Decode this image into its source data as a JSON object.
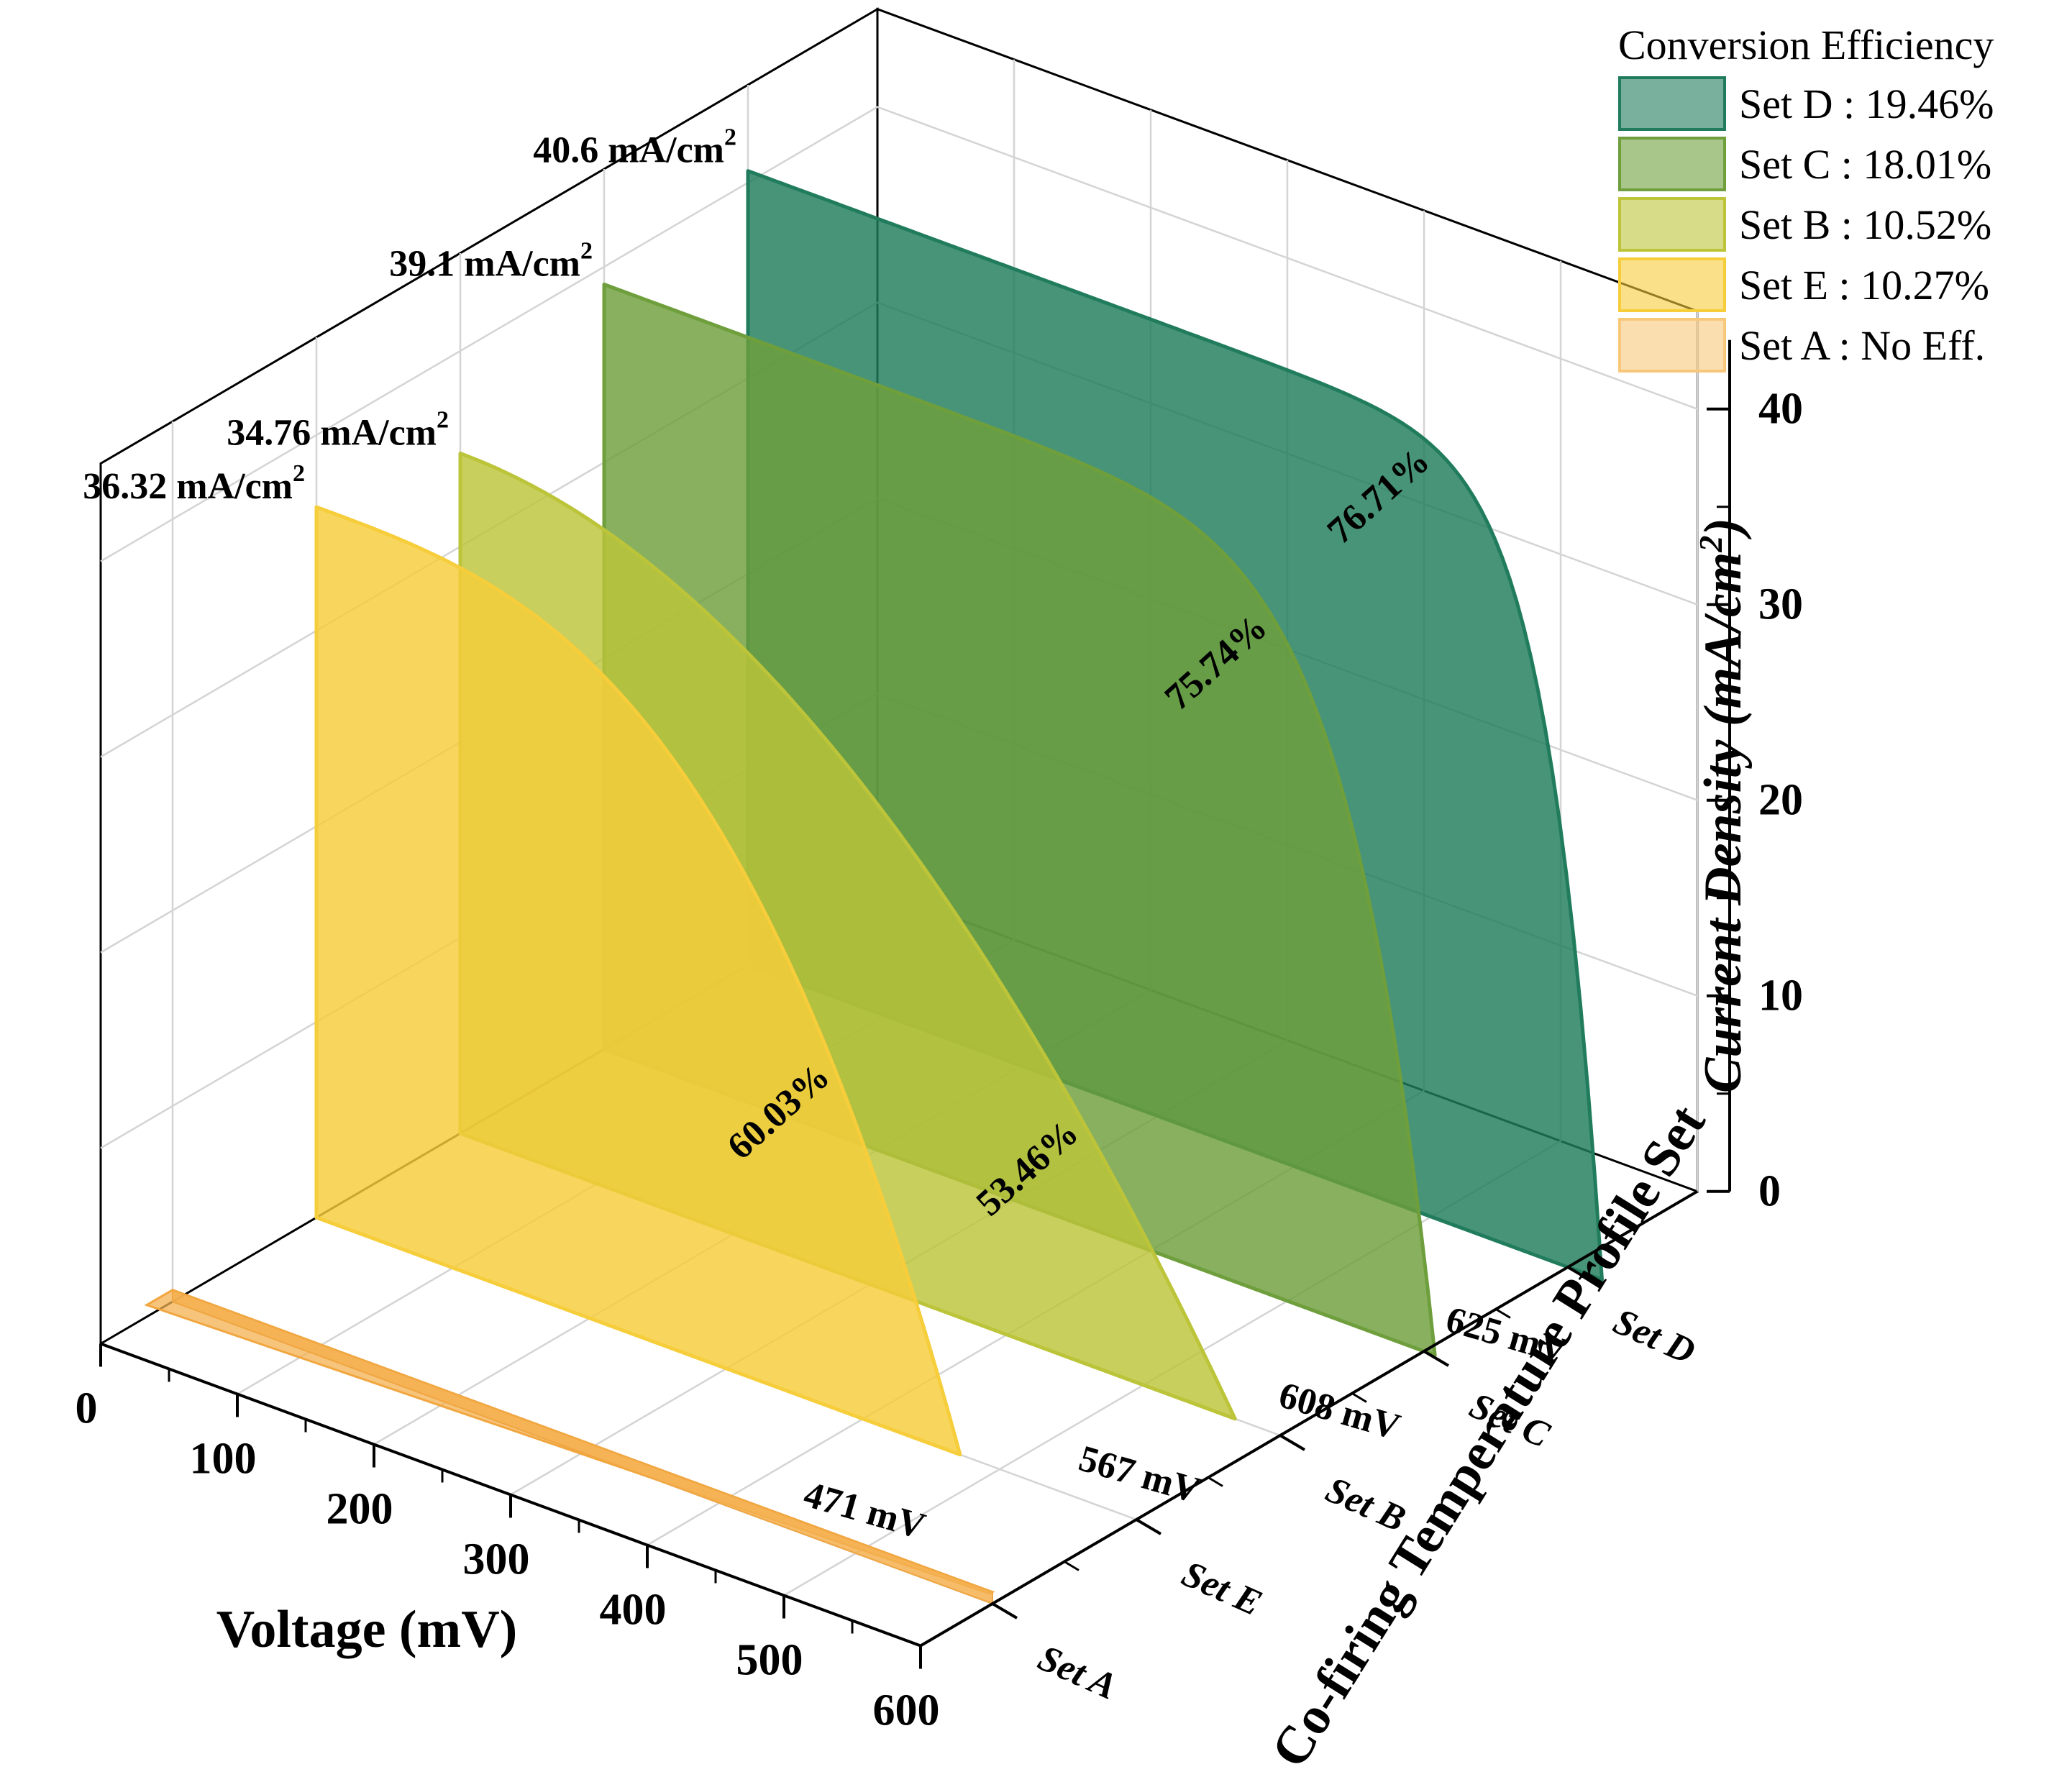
{
  "chart_data": {
    "type": "area",
    "subtype": "3d-wall",
    "title": "",
    "xlabel": "Voltage (mV)",
    "ylabel": "Co-firing Temperature Profile Set",
    "zlabel": "Current Density (mA/cm²)",
    "xlim": [
      0,
      600
    ],
    "zlim": [
      0,
      45
    ],
    "x_ticks": [
      "0",
      "100",
      "200",
      "300",
      "400",
      "500",
      "600"
    ],
    "z_ticks": [
      "0",
      "10",
      "20",
      "30",
      "40"
    ],
    "categories": [
      "Set A",
      "Set E",
      "Set B",
      "Set C",
      "Set D"
    ],
    "legend": {
      "title": "Conversion Efficiency",
      "position": "top-right",
      "entries": [
        {
          "label": "Set D : 19.46%",
          "color": "#207c5c"
        },
        {
          "label": "Set C : 18.01%",
          "color": "#6e9f3c"
        },
        {
          "label": "Set B : 10.52%",
          "color": "#bcc439"
        },
        {
          "label": "Set E : 10.27%",
          "color": "#f6cd3a"
        },
        {
          "label": "Set A : No Eff.",
          "color": "#f8c87a"
        }
      ]
    },
    "series": [
      {
        "name": "Set A",
        "color": "#f4b050",
        "jsc": 0.0,
        "voc": 600,
        "n": 1,
        "ff": "",
        "isc_label": "",
        "voc_label": "",
        "flat": true
      },
      {
        "name": "Set E",
        "color": "#f6cd3a",
        "jsc": 36.32,
        "voc": 471,
        "n": 3.0,
        "ff": "60.03%",
        "isc_label": "36.32 mA/cm²",
        "voc_label": "471 mV"
      },
      {
        "name": "Set B",
        "color": "#bcc439",
        "jsc": 34.76,
        "voc": 567,
        "n": 2.0,
        "ff": "53.46%",
        "isc_label": "34.76 mA/cm²",
        "voc_label": "567 mV"
      },
      {
        "name": "Set C",
        "color": "#6e9f3c",
        "jsc": 39.1,
        "voc": 608,
        "n": 10,
        "ff": "75.74%",
        "isc_label": "39.1 mA/cm²",
        "voc_label": "608 mV"
      },
      {
        "name": "Set D",
        "color": "#207c5c",
        "jsc": 40.6,
        "voc": 625,
        "n": 16,
        "ff": "76.71%",
        "isc_label": "40.6 mA/cm²",
        "voc_label": "625 mV"
      }
    ]
  }
}
